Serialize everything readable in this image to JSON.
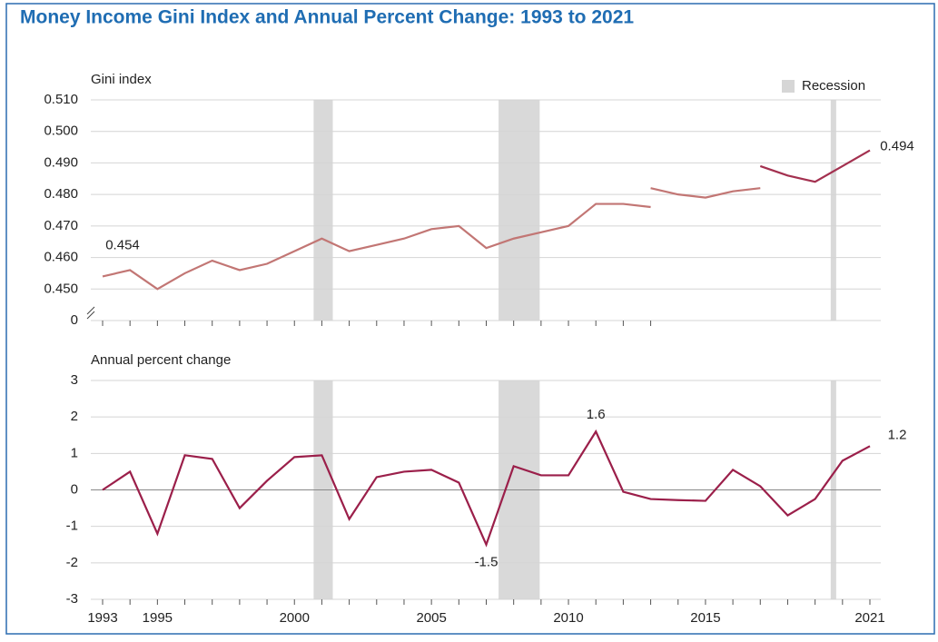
{
  "title": "Money Income Gini Index and Annual Percent Change: 1993 to 2021",
  "legend_label": "Recession",
  "recessions": [
    [
      2000.7,
      2001.4
    ],
    [
      2007.45,
      2008.95
    ],
    [
      2019.57,
      2019.77
    ]
  ],
  "chart_data": [
    {
      "type": "line",
      "y_label": "Gini index",
      "xlim": [
        1993,
        2021
      ],
      "ylim": [
        0.44,
        0.51
      ],
      "yticks": [
        {
          "value": 0.45,
          "label": "0.450"
        },
        {
          "value": 0.46,
          "label": "0.460"
        },
        {
          "value": 0.47,
          "label": "0.470"
        },
        {
          "value": 0.48,
          "label": "0.480"
        },
        {
          "value": 0.49,
          "label": "0.490"
        },
        {
          "value": 0.5,
          "label": "0.500"
        },
        {
          "value": 0.51,
          "label": "0.510"
        }
      ],
      "axis_break_label": "0",
      "grid": true,
      "series": [
        {
          "color": "#c27674",
          "x": [
            1993,
            1994,
            1995,
            1996,
            1997,
            1998,
            1999,
            2000,
            2001,
            2002,
            2003,
            2004,
            2005,
            2006,
            2007,
            2008,
            2009,
            2010,
            2011,
            2012,
            2013
          ],
          "values": [
            0.454,
            0.456,
            0.45,
            0.455,
            0.459,
            0.456,
            0.458,
            0.462,
            0.466,
            0.462,
            0.464,
            0.466,
            0.469,
            0.47,
            0.463,
            0.466,
            0.468,
            0.47,
            0.477,
            0.477,
            0.476
          ],
          "value_labels": [
            "0.454",
            null,
            null,
            null,
            null,
            null,
            null,
            null,
            null,
            null,
            null,
            null,
            null,
            null,
            null,
            null,
            null,
            null,
            null,
            null,
            null
          ]
        },
        {
          "color": "#c27674",
          "x": [
            2013,
            2014,
            2015,
            2016,
            2017
          ],
          "values": [
            0.482,
            0.48,
            0.479,
            0.481,
            0.482
          ]
        },
        {
          "color": "#a3304f",
          "x": [
            2017,
            2018,
            2019,
            2020,
            2021
          ],
          "values": [
            0.489,
            0.486,
            0.484,
            0.489,
            0.494
          ],
          "value_labels": [
            null,
            null,
            null,
            null,
            "0.494"
          ]
        }
      ]
    },
    {
      "type": "line",
      "y_label": "Annual percent change",
      "xlim": [
        1993,
        2021
      ],
      "ylim": [
        -3,
        3
      ],
      "yticks": [
        -3,
        -2,
        -1,
        0,
        1,
        2,
        3
      ],
      "grid": true,
      "xticks": [
        1993,
        1995,
        2000,
        2005,
        2010,
        2015,
        2021
      ],
      "series": [
        {
          "color": "#9b1f4a",
          "x": [
            1993,
            1994,
            1995,
            1996,
            1997,
            1998,
            1999,
            2000,
            2001,
            2002,
            2003,
            2004,
            2005,
            2006,
            2007,
            2008,
            2009,
            2010,
            2011,
            2012,
            2013,
            2014,
            2015,
            2016,
            2017,
            2018,
            2019,
            2020,
            2021
          ],
          "values": [
            0,
            0.5,
            -1.2,
            0.95,
            0.85,
            -0.5,
            0.25,
            0.9,
            0.95,
            -0.8,
            0.35,
            0.5,
            0.55,
            0.2,
            -1.5,
            0.65,
            0.4,
            0.4,
            1.6,
            -0.05,
            -0.25,
            -0.28,
            -0.3,
            0.55,
            0.1,
            -0.7,
            -0.25,
            0.8,
            1.2
          ],
          "value_labels": [
            null,
            null,
            null,
            null,
            null,
            null,
            null,
            null,
            null,
            null,
            null,
            null,
            null,
            null,
            "-1.5",
            null,
            null,
            null,
            "1.6",
            null,
            null,
            null,
            null,
            null,
            null,
            null,
            null,
            null,
            "1.2"
          ]
        }
      ]
    }
  ]
}
